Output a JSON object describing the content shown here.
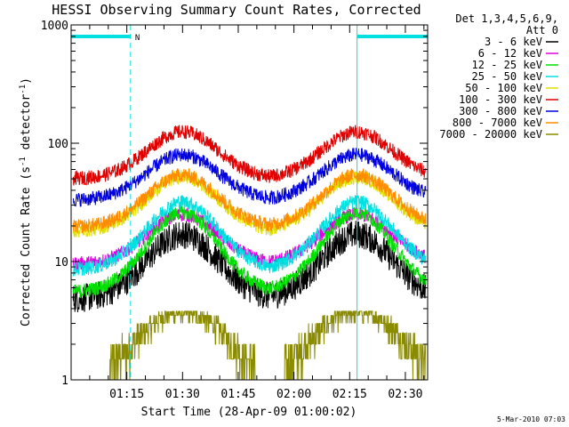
{
  "chart_data": {
    "type": "line",
    "title": "HESSI Observing Summary Count Rates, Corrected",
    "xlabel": "Start Time (28-Apr-09 01:00:02)",
    "ylabel_main": "Corrected Count Rate (s",
    "ylabel_sup1": "-1",
    "ylabel_mid": " detector",
    "ylabel_sup2": "-1",
    "ylabel_end": ")",
    "y_scale": "log",
    "ylim": [
      1,
      1000
    ],
    "y_ticks": [
      {
        "value": 1,
        "label": "1"
      },
      {
        "value": 10,
        "label": "10"
      },
      {
        "value": 100,
        "label": "100"
      },
      {
        "value": 1000,
        "label": "1000"
      }
    ],
    "x_range_minutes": [
      0,
      96
    ],
    "x_ticks": [
      {
        "minute": 15,
        "label": "01:15"
      },
      {
        "minute": 30,
        "label": "01:30"
      },
      {
        "minute": 45,
        "label": "01:45"
      },
      {
        "minute": 60,
        "label": "02:00"
      },
      {
        "minute": 75,
        "label": "02:15"
      },
      {
        "minute": 90,
        "label": "02:30"
      }
    ],
    "legend_header": [
      "Det 1,3,4,5,6,9,",
      "Att 0"
    ],
    "legend_position": "right",
    "series": [
      {
        "name": "3 - 6 keV",
        "color": "#000000",
        "base": 4.8,
        "peak": 17
      },
      {
        "name": "6 - 12 keV",
        "color": "#e000e0",
        "base": 9.5,
        "peak": 25
      },
      {
        "name": "12 - 25 keV",
        "color": "#00e000",
        "base": 5.5,
        "peak": 26
      },
      {
        "name": "25 - 50 keV",
        "color": "#00e0e0",
        "base": 8.5,
        "peak": 32
      },
      {
        "name": "50 - 100 keV",
        "color": "#e0e000",
        "base": 18,
        "peak": 52
      },
      {
        "name": "100 - 300 keV",
        "color": "#e00000",
        "base": 50,
        "peak": 125
      },
      {
        "name": "300 - 800 keV",
        "color": "#0000e0",
        "base": 33,
        "peak": 80
      },
      {
        "name": "800 - 7000 keV",
        "color": "#ff8c00",
        "base": 19.5,
        "peak": 54
      },
      {
        "name": "7000 - 20000 keV",
        "color": "#8b8b00",
        "base": 1,
        "peak": 3.6
      }
    ],
    "orbit_peaks_minutes": [
      30,
      77
    ],
    "orbit_sigma_minutes": 9.5,
    "data_gaps_minutes": [
      [
        0,
        16
      ],
      [
        77,
        96
      ]
    ],
    "flag_marker": "N",
    "flag_color": "#00e0e0"
  },
  "footer_timestamp": "5-Mar-2010 07:03"
}
